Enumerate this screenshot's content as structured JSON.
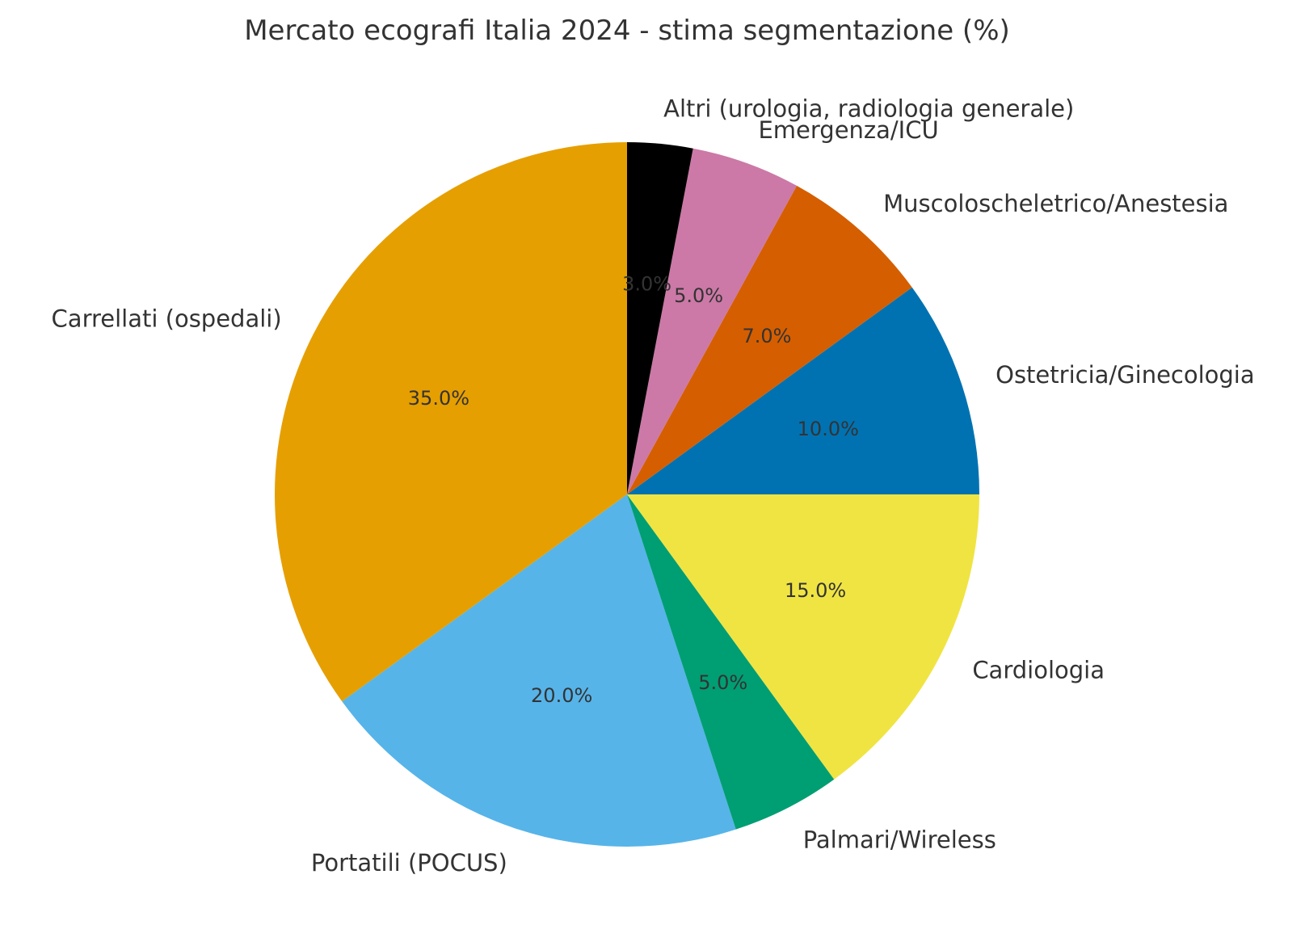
{
  "chart_data": {
    "type": "pie",
    "title": "Mercato ecografi Italia 2024 - stima segmentazione (%)",
    "start_angle_deg": 0,
    "direction": "counterclockwise",
    "slices": [
      {
        "label": "Ostetricia/Ginecologia",
        "value": 10.0,
        "pct_label": "10.0%",
        "color": "#0072B2"
      },
      {
        "label": "Muscoloscheletrico/Anestesia",
        "value": 7.0,
        "pct_label": "7.0%",
        "color": "#D55E00"
      },
      {
        "label": "Emergenza/ICU",
        "value": 5.0,
        "pct_label": "5.0%",
        "color": "#CC79A7"
      },
      {
        "label": "Altri (urologia, radiologia generale)",
        "value": 3.0,
        "pct_label": "3.0%",
        "color": "#000000"
      },
      {
        "label": "Carrellati (ospedali)",
        "value": 35.0,
        "pct_label": "35.0%",
        "color": "#E69F00"
      },
      {
        "label": "Portatili (POCUS)",
        "value": 20.0,
        "pct_label": "20.0%",
        "color": "#56B4E9"
      },
      {
        "label": "Palmari/Wireless",
        "value": 5.0,
        "pct_label": "5.0%",
        "color": "#009E73"
      },
      {
        "label": "Cardiologia",
        "value": 15.0,
        "pct_label": "15.0%",
        "color": "#F0E442"
      }
    ]
  }
}
